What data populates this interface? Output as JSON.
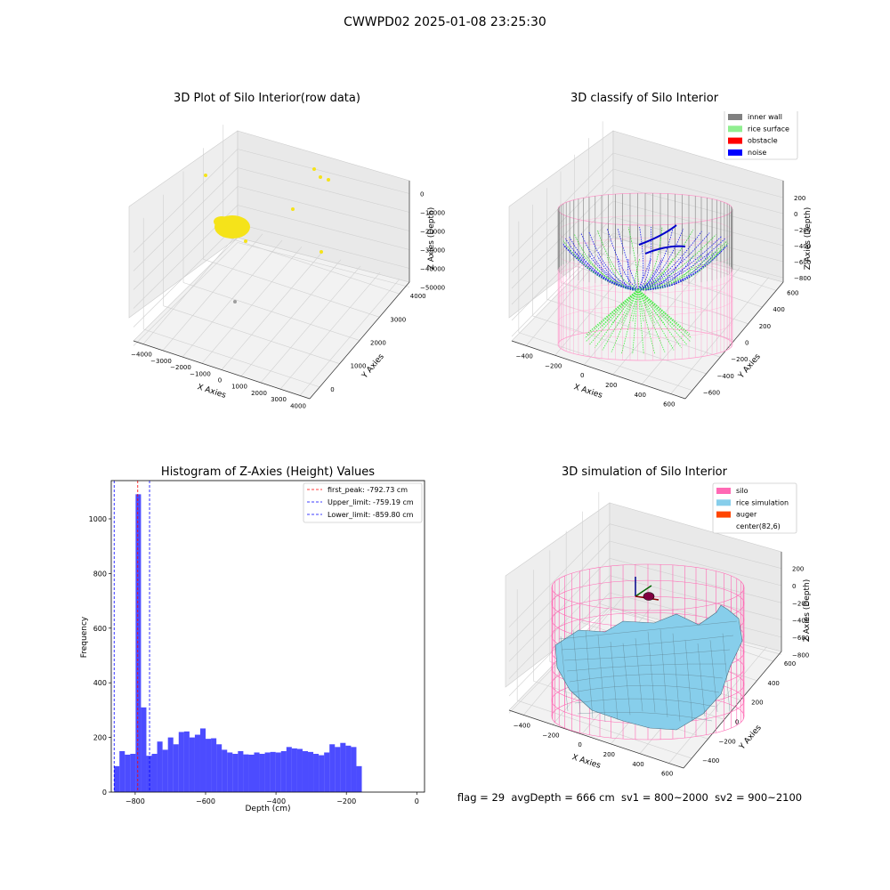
{
  "suptitle": "CWWPD02 2025-01-08 23:25:30",
  "footer": "flag = 29  avgDepth = 666 cm  sv1 = 800~2000  sv2 = 900~2100",
  "chart_data": [
    {
      "type": "scatter",
      "title": "3D Plot of Silo Interior(row data)",
      "xlabel": "X Axies",
      "ylabel": "Y Axies",
      "zlabel": "Z Axies (Depth)",
      "x_ticks": [
        "−4000",
        "−3000",
        "−2000",
        "−1000",
        "0",
        "1000",
        "2000",
        "3000",
        "4000"
      ],
      "y_ticks": [
        "0",
        "1000",
        "2000",
        "3000",
        "4000"
      ],
      "z_ticks": [
        "0",
        "−10000",
        "−20000",
        "−30000",
        "−40000",
        "−50000"
      ],
      "colors": {
        "points": "#f5e31a",
        "outlier": "#9e9e9e"
      }
    },
    {
      "type": "scatter",
      "title": "3D classify of Silo Interior",
      "xlabel": "X Axies",
      "ylabel": "Y Axies",
      "zlabel": "Z Axies (Depth)",
      "x_ticks": [
        "−400",
        "−200",
        "0",
        "200",
        "400",
        "600"
      ],
      "y_ticks": [
        "−600",
        "−400",
        "−200",
        "0",
        "200",
        "400",
        "600"
      ],
      "z_ticks": [
        "200",
        "0",
        "−200",
        "−400",
        "−600",
        "−800"
      ],
      "legend": [
        {
          "label": "inner wall",
          "color": "#808080"
        },
        {
          "label": "rice surface",
          "color": "#90ee90"
        },
        {
          "label": "obstacle",
          "color": "#ff0000"
        },
        {
          "label": "noise",
          "color": "#0000ff"
        }
      ]
    },
    {
      "type": "bar",
      "title": "Histogram of Z-Axies (Height) Values",
      "xlabel": "Depth (cm)",
      "ylabel": "Frequency",
      "xlim": [
        -868,
        22
      ],
      "ylim": [
        0,
        1140
      ],
      "x_ticks": [
        -800,
        -600,
        -400,
        -200,
        0
      ],
      "x_tick_labels": [
        "−800",
        "−600",
        "−400",
        "−200",
        "0"
      ],
      "y_ticks": [
        0,
        200,
        400,
        600,
        800,
        1000
      ],
      "bin_start": -860,
      "bin_width": 15.3,
      "values": [
        95,
        150,
        137,
        140,
        1090,
        310,
        133,
        140,
        185,
        155,
        200,
        175,
        220,
        222,
        200,
        210,
        233,
        195,
        197,
        175,
        155,
        145,
        140,
        150,
        138,
        137,
        145,
        140,
        145,
        147,
        145,
        150,
        165,
        160,
        158,
        150,
        147,
        140,
        135,
        145,
        175,
        165,
        180,
        170,
        165,
        95
      ],
      "bar_color": "#0000ff",
      "vlines": [
        {
          "label": "first_peak: -792.73 cm",
          "x": -792.73,
          "color": "#ff0000"
        },
        {
          "label": "Upper_limit: -759.19 cm",
          "x": -759.19,
          "color": "#0000ff"
        },
        {
          "label": "Lower_limit: -859.80 cm",
          "x": -859.8,
          "color": "#0000ff"
        }
      ]
    },
    {
      "type": "area",
      "title": "3D simulation of Silo Interior",
      "xlabel": "X Axies",
      "ylabel": "Y Axies",
      "zlabel": "Z Axies (Depth)",
      "x_ticks": [
        "−400",
        "−200",
        "0",
        "200",
        "400",
        "600"
      ],
      "y_ticks": [
        "−400",
        "−200",
        "0",
        "200",
        "400",
        "600"
      ],
      "z_ticks": [
        "200",
        "0",
        "−200",
        "−400",
        "−600",
        "−800"
      ],
      "legend": [
        {
          "label": "silo",
          "color": "#ff69b4"
        },
        {
          "label": "rice simulation",
          "color": "#87ceeb"
        },
        {
          "label": "auger",
          "color": "#ff4500"
        },
        {
          "label": "center(82,6)",
          "color": ""
        }
      ]
    }
  ]
}
